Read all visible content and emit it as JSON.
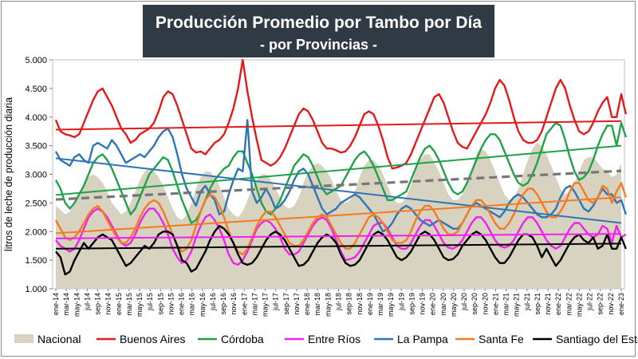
{
  "title": {
    "line1": "Producción Promedio por Tambo por Día",
    "line2": "- por Provincias -"
  },
  "chart_data": {
    "type": "line",
    "title": "Producción Promedio por Tambo por Día - por Provincias -",
    "ylabel": "litros de leche de producción diaria",
    "xlabel": "",
    "ylim": [
      1000,
      5000
    ],
    "y_ticks": [
      "1.000",
      "1.500",
      "2.000",
      "2.500",
      "3.000",
      "3.500",
      "4.000",
      "4.500",
      "5.000"
    ],
    "x_labels": [
      "ene-14",
      "mar-14",
      "may-14",
      "jul-14",
      "sep-14",
      "nov-14",
      "ene-15",
      "mar-15",
      "may-15",
      "jul-15",
      "sep-15",
      "nov-15",
      "ene-16",
      "mar-16",
      "may-16",
      "jul-16",
      "sep-16",
      "nov-16",
      "ene-17",
      "mar-17",
      "may-17",
      "jul-17",
      "sep-17",
      "nov-17",
      "ene-18",
      "mar-18",
      "may-18",
      "jul-18",
      "sep-18",
      "nov-18",
      "ene-19",
      "mar-19",
      "may-19",
      "jul-19",
      "sep-19",
      "nov-19",
      "ene-20",
      "mar-20",
      "may-20",
      "jul-20",
      "sep-20",
      "nov-20",
      "ene-21",
      "mar-21",
      "may-21",
      "jul-21",
      "sep-21",
      "nov-21",
      "ene-22",
      "mar-22",
      "may-22",
      "jul-22",
      "sep-22",
      "nov-22",
      "ene-23"
    ],
    "legend": [
      "Nacional",
      "Buenos Aires",
      "Córdoba",
      "Entre Ríos",
      "La Pampa",
      "Santa Fe",
      "Santiago del Estero"
    ],
    "series": [
      {
        "name": "Nacional",
        "style": "area",
        "color": "#d8d3c0",
        "values": [
          2450,
          2380,
          2300,
          2350,
          2500,
          2650,
          2850,
          2950,
          3000,
          2950,
          2850,
          2700,
          2500,
          2400,
          2300,
          2350,
          2500,
          2700,
          2900,
          3050,
          3100,
          3050,
          2950,
          2800,
          2600,
          2400,
          2250,
          2200,
          2300,
          2500,
          2750,
          2950,
          3050,
          3050,
          2950,
          2800,
          2600,
          2400,
          2300,
          2250,
          2350,
          2550,
          2750,
          2900,
          3000,
          3000,
          2900,
          2750,
          2600,
          2450,
          2400,
          2450,
          2600,
          2850,
          3050,
          3150,
          3200,
          3150,
          3050,
          2900,
          2700,
          2550,
          2500,
          2550,
          2700,
          2950,
          3150,
          3250,
          3250,
          3150,
          3000,
          2800,
          2600,
          2500,
          2500,
          2600,
          2800,
          3050,
          3250,
          3350,
          3350,
          3200,
          3050,
          2850,
          2650,
          2550,
          2550,
          2650,
          2850,
          3100,
          3350,
          3450,
          3400,
          3250,
          3050,
          2850,
          2650,
          2550,
          2600,
          2750,
          3000,
          3250,
          3450,
          3550,
          3500,
          3350,
          3150,
          2950,
          2750,
          2650,
          2700,
          2850,
          3050,
          3250,
          3300,
          3300,
          3200,
          3100,
          3050,
          2950,
          3000,
          3200
        ]
      },
      {
        "name": "Buenos Aires",
        "style": "line",
        "color": "#e31a1c",
        "values": [
          3950,
          3750,
          3700,
          3680,
          3650,
          3700,
          3900,
          4100,
          4300,
          4450,
          4500,
          4350,
          4200,
          4000,
          3800,
          3700,
          3550,
          3600,
          3700,
          3750,
          3800,
          3900,
          4100,
          4350,
          4450,
          4400,
          4200,
          3950,
          3700,
          3450,
          3380,
          3400,
          3350,
          3450,
          3550,
          3600,
          3700,
          3900,
          4150,
          4500,
          5000,
          4450,
          4000,
          3600,
          3250,
          3200,
          3150,
          3200,
          3300,
          3450,
          3650,
          3850,
          4050,
          4150,
          4100,
          3950,
          3750,
          3550,
          3450,
          3450,
          3420,
          3380,
          3400,
          3500,
          3650,
          3850,
          4050,
          4100,
          4050,
          3850,
          3600,
          3300,
          3100,
          3120,
          3150,
          3200,
          3350,
          3550,
          3750,
          3950,
          4150,
          4350,
          4400,
          4250,
          4000,
          3750,
          3550,
          3480,
          3450,
          3600,
          3750,
          3900,
          4050,
          4250,
          4500,
          4650,
          4550,
          4300,
          4000,
          3750,
          3600,
          3550,
          3550,
          3600,
          3750,
          4000,
          4250,
          4500,
          4650,
          4500,
          4200,
          3950,
          3750,
          3700,
          3750,
          3900,
          4100,
          4250,
          4350,
          4000,
          4000,
          4400,
          4050
        ]
      },
      {
        "name": "Córdoba",
        "style": "line",
        "color": "#1fa34a",
        "values": [
          2900,
          2750,
          2500,
          2400,
          2500,
          2650,
          2800,
          3000,
          3200,
          3300,
          3350,
          3250,
          3100,
          2900,
          2700,
          2500,
          2300,
          2400,
          2600,
          2800,
          3000,
          3100,
          3200,
          3300,
          3250,
          3050,
          2800,
          2550,
          2350,
          2150,
          2200,
          2350,
          2550,
          2750,
          2900,
          3000,
          3100,
          3150,
          3300,
          3400,
          3400,
          3200,
          3000,
          2750,
          2500,
          2350,
          2300,
          2400,
          2550,
          2750,
          2950,
          3150,
          3250,
          3350,
          3300,
          3150,
          2950,
          2750,
          2650,
          2700,
          2750,
          2800,
          2950,
          3100,
          3250,
          3350,
          3400,
          3300,
          3150,
          2950,
          2750,
          2550,
          2550,
          2600,
          2650,
          2700,
          2900,
          3100,
          3300,
          3450,
          3500,
          3400,
          3250,
          3050,
          2850,
          2700,
          2650,
          2700,
          2850,
          3050,
          3250,
          3450,
          3600,
          3700,
          3700,
          3600,
          3400,
          3200,
          3000,
          2850,
          2800,
          2850,
          3000,
          3200,
          3450,
          3700,
          3800,
          3900,
          3850,
          3600,
          3300,
          3050,
          2900,
          2950,
          3050,
          3250,
          3500,
          3700,
          3850,
          3850,
          3500,
          3900,
          3650
        ]
      },
      {
        "name": "Entre Ríos",
        "style": "line",
        "color": "#ee22ee",
        "values": [
          1850,
          1750,
          1700,
          1650,
          1700,
          1850,
          2050,
          2250,
          2350,
          2400,
          2350,
          2250,
          2100,
          1950,
          1800,
          1750,
          1800,
          1950,
          2150,
          2300,
          2400,
          2400,
          2300,
          2150,
          1950,
          1700,
          1550,
          1450,
          1500,
          1650,
          1900,
          2100,
          2250,
          2300,
          2200,
          2050,
          1850,
          1600,
          1450,
          1420,
          1500,
          1650,
          1850,
          2050,
          2150,
          2200,
          2150,
          2050,
          1900,
          1700,
          1600,
          1600,
          1650,
          1800,
          1950,
          2100,
          2200,
          2250,
          2200,
          2050,
          1850,
          1650,
          1500,
          1520,
          1550,
          1650,
          1800,
          1950,
          2100,
          2150,
          2150,
          2050,
          1900,
          1750,
          1700,
          1700,
          1800,
          1950,
          2100,
          2200,
          2200,
          2100,
          1950,
          1800,
          1720,
          1700,
          1750,
          1850,
          2000,
          2150,
          2250,
          2250,
          2150,
          2000,
          1850,
          1750,
          1720,
          1750,
          1850,
          2000,
          2150,
          2250,
          2250,
          2150,
          2000,
          1850,
          1750,
          1700,
          1750,
          1900,
          2050,
          2150,
          2150,
          2050,
          1950,
          1900,
          1950,
          2100,
          2050,
          1800,
          2100,
          1900,
          1950
        ]
      },
      {
        "name": "La Pampa",
        "style": "line",
        "color": "#2e75b6",
        "values": [
          3400,
          3250,
          3200,
          3150,
          3300,
          3350,
          3250,
          3200,
          3500,
          3550,
          3500,
          3450,
          3600,
          3500,
          3350,
          3200,
          3250,
          3300,
          3350,
          3300,
          3400,
          3500,
          3650,
          3750,
          3800,
          3650,
          3350,
          3000,
          2750,
          2600,
          2450,
          2700,
          2800,
          2650,
          2550,
          2300,
          2350,
          2650,
          2900,
          3100,
          3050,
          3950,
          2700,
          2500,
          2600,
          2750,
          2600,
          2400,
          2450,
          2550,
          2700,
          2900,
          3050,
          3100,
          3000,
          2800,
          2600,
          2400,
          2300,
          2350,
          2400,
          2500,
          2550,
          2600,
          2650,
          2600,
          2500,
          2400,
          2300,
          2150,
          2000,
          2050,
          2150,
          2300,
          2400,
          2450,
          2400,
          2300,
          2200,
          2150,
          2100,
          2150,
          2200,
          2150,
          2100,
          2050,
          2050,
          2150,
          2300,
          2450,
          2500,
          2450,
          2400,
          2350,
          2300,
          2250,
          2350,
          2500,
          2600,
          2650,
          2600,
          2500,
          2400,
          2300,
          2250,
          2250,
          2300,
          2400,
          2600,
          2750,
          2800,
          2700,
          2550,
          2400,
          2350,
          2450,
          2600,
          2750,
          2650,
          2650,
          2500,
          2550,
          2300
        ]
      },
      {
        "name": "Santa Fe",
        "style": "line",
        "color": "#f47b20",
        "values": [
          2200,
          2050,
          1900,
          1850,
          1900,
          2000,
          2150,
          2300,
          2400,
          2450,
          2350,
          2200,
          2050,
          1900,
          1800,
          1800,
          1900,
          2050,
          2250,
          2400,
          2500,
          2550,
          2500,
          2350,
          2150,
          1950,
          1750,
          1650,
          1700,
          1850,
          2100,
          2350,
          2550,
          2650,
          2600,
          2450,
          2250,
          2000,
          1800,
          1650,
          1600,
          1700,
          1900,
          2100,
          2250,
          2350,
          2350,
          2250,
          2100,
          1950,
          1800,
          1750,
          1750,
          1850,
          2000,
          2150,
          2250,
          2300,
          2250,
          2100,
          1950,
          1800,
          1700,
          1700,
          1800,
          1950,
          2100,
          2250,
          2300,
          2250,
          2150,
          2000,
          1850,
          1800,
          1800,
          1850,
          2000,
          2200,
          2350,
          2450,
          2450,
          2350,
          2200,
          2050,
          1950,
          1950,
          2000,
          2150,
          2300,
          2450,
          2550,
          2550,
          2450,
          2300,
          2150,
          2050,
          2050,
          2150,
          2300,
          2500,
          2650,
          2750,
          2750,
          2650,
          2500,
          2350,
          2250,
          2250,
          2350,
          2500,
          2700,
          2850,
          2850,
          2700,
          2550,
          2500,
          2600,
          2800,
          2750,
          2500,
          2700,
          2850,
          2600
        ]
      },
      {
        "name": "Santiago del Estero",
        "style": "line",
        "color": "#000000",
        "values": [
          1650,
          1550,
          1250,
          1300,
          1500,
          1650,
          1800,
          1700,
          1800,
          1900,
          1950,
          1900,
          1850,
          1700,
          1550,
          1400,
          1450,
          1550,
          1650,
          1750,
          1700,
          1800,
          1950,
          2000,
          2000,
          1950,
          1750,
          1500,
          1450,
          1300,
          1350,
          1500,
          1650,
          1850,
          2000,
          2100,
          2050,
          1950,
          1800,
          1600,
          1450,
          1420,
          1450,
          1550,
          1700,
          1850,
          1950,
          2000,
          1950,
          1850,
          1700,
          1550,
          1400,
          1420,
          1500,
          1650,
          1800,
          1900,
          1950,
          1900,
          1800,
          1600,
          1450,
          1400,
          1420,
          1500,
          1650,
          1800,
          1950,
          2000,
          1950,
          1850,
          1700,
          1550,
          1500,
          1550,
          1650,
          1800,
          1950,
          2000,
          1950,
          1850,
          1700,
          1550,
          1500,
          1520,
          1600,
          1750,
          1850,
          1950,
          2000,
          1950,
          1850,
          1700,
          1550,
          1450,
          1450,
          1550,
          1700,
          1850,
          1950,
          1950,
          1900,
          1750,
          1550,
          1700,
          1550,
          1400,
          1500,
          1650,
          1800,
          1900,
          1950,
          1850,
          1800,
          1900,
          1700,
          1750,
          1950,
          1700,
          1700,
          1900,
          1700
        ]
      }
    ],
    "trendlines": [
      {
        "name": "Nacional",
        "color": "#767676",
        "dashed": true,
        "start": 2560,
        "end": 3060
      },
      {
        "name": "Buenos Aires",
        "color": "#e31a1c",
        "dashed": false,
        "start": 3780,
        "end": 3930
      },
      {
        "name": "Córdoba",
        "color": "#1fa34a",
        "dashed": false,
        "start": 2640,
        "end": 3500
      },
      {
        "name": "Entre Ríos",
        "color": "#ee22ee",
        "dashed": false,
        "start": 1880,
        "end": 1960
      },
      {
        "name": "La Pampa",
        "color": "#2e75b6",
        "dashed": false,
        "start": 3280,
        "end": 2150
      },
      {
        "name": "Santa Fe",
        "color": "#f47b20",
        "dashed": false,
        "start": 1970,
        "end": 2600
      },
      {
        "name": "Santiago del Estero",
        "color": "#000000",
        "dashed": false,
        "start": 1700,
        "end": 1790
      }
    ],
    "grid": false,
    "legend_position": "bottom"
  }
}
